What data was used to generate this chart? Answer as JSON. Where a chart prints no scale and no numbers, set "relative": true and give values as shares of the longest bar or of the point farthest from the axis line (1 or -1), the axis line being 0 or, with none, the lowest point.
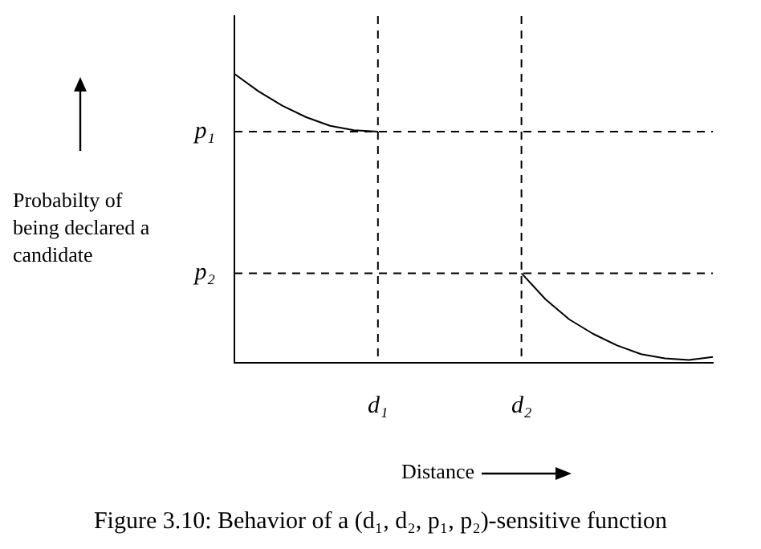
{
  "chart_data": {
    "type": "line",
    "title": "Figure 3.10: Behavior of a (d₁, d₂, p₁, p₂)-sensitive function",
    "xlabel": "Distance",
    "ylabel": "Probabilty of being declared a candidate",
    "relative": true,
    "tick_labels": "x",
    "grid": false,
    "legend": false,
    "marker": "none",
    "line_style": "solid",
    "categories": [
      null,
      null,
      null,
      null,
      null,
      null,
      "d₁",
      null,
      null,
      null,
      null,
      null,
      "d₂",
      null,
      null,
      null,
      null,
      null,
      null,
      null,
      null
    ],
    "series": [
      {
        "color": "#000000",
        "values": [
          1,
          0.94,
          0.89,
          0.85,
          0.82,
          0.805,
          0.8,
          null,
          null,
          null,
          null,
          null,
          null,
          null,
          null,
          null,
          null,
          null,
          null,
          null,
          null
        ]
      },
      {
        "color": "#000000",
        "values": [
          null,
          null,
          null,
          null,
          null,
          null,
          null,
          null,
          null,
          null,
          null,
          null,
          0.31,
          0.22,
          0.15,
          0.1,
          0.06,
          0.03,
          0.015,
          0.01,
          0.02
        ]
      }
    ],
    "ref_lines": [
      {
        "axis": "y",
        "value": 0.8,
        "label": "p₁",
        "line_style": "dashed"
      },
      {
        "axis": "y",
        "value": 0.31,
        "label": "p₂",
        "line_style": "dashed"
      },
      {
        "axis": "x",
        "value": "d₁",
        "line_style": "dashed"
      },
      {
        "axis": "x",
        "value": "d₂",
        "line_style": "dashed"
      }
    ]
  }
}
